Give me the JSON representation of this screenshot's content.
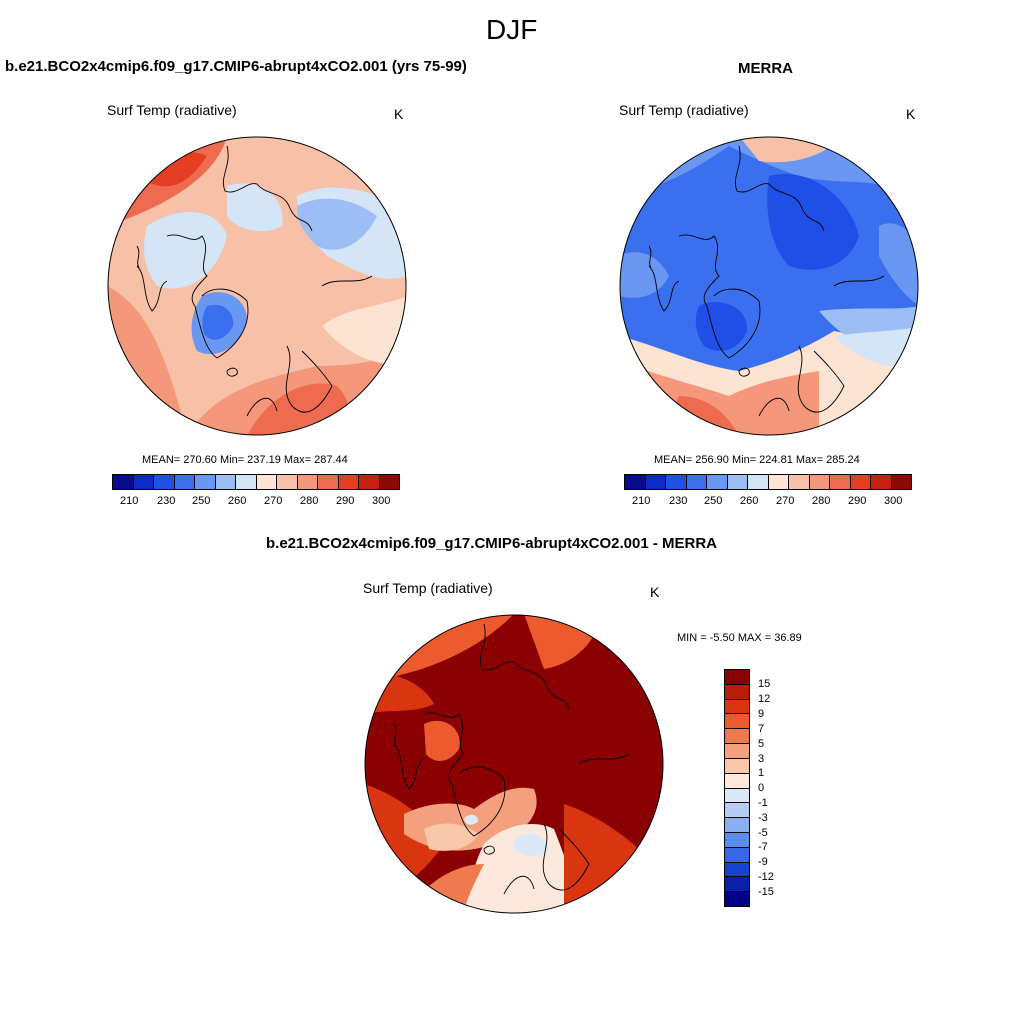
{
  "figure": {
    "title": "DJF",
    "panels": [
      {
        "title": "b.e21.BCO2x4cmip6.f09_g17.CMIP6-abrupt4xCO2.001 (yrs 75-99)",
        "variable": "Surf Temp (radiative)",
        "units": "K",
        "stats": "MEAN= 270.60  Min= 237.19  Max= 287.44",
        "colorbar_ticks": [
          "210",
          "230",
          "250",
          "260",
          "270",
          "280",
          "290",
          "300"
        ]
      },
      {
        "title": "MERRA",
        "variable": "Surf Temp (radiative)",
        "units": "K",
        "stats": "MEAN= 256.90  Min= 224.81  Max= 285.24",
        "colorbar_ticks": [
          "210",
          "230",
          "250",
          "260",
          "270",
          "280",
          "290",
          "300"
        ]
      },
      {
        "title": "b.e21.BCO2x4cmip6.f09_g17.CMIP6-abrupt4xCO2.001 - MERRA",
        "variable": "Surf Temp (radiative)",
        "units": "K",
        "stats": "MIN =  -5.50 MAX =  36.89",
        "colorbar_ticks": [
          "15",
          "12",
          "9",
          "7",
          "5",
          "3",
          "1",
          "0",
          "-1",
          "-3",
          "-5",
          "-7",
          "-9",
          "-12",
          "-15"
        ]
      }
    ]
  },
  "colors": {
    "abs_scale": [
      "#0a0a8c",
      "#0d2cc7",
      "#1f4fe6",
      "#3a70f0",
      "#6a97f2",
      "#9dbdf5",
      "#d4e5f7",
      "#fde3d2",
      "#f8c0a6",
      "#f4977a",
      "#ef6b4f",
      "#e53e23",
      "#c72010",
      "#8c0a05"
    ],
    "diff_scale": [
      "#8b0000",
      "#b81e04",
      "#d93510",
      "#ec5a2d",
      "#f07a50",
      "#f5a07d",
      "#f9c8ab",
      "#fde8dc",
      "#dbe8f7",
      "#b5cdf3",
      "#8bb0f0",
      "#5b8def",
      "#3766e8",
      "#1640d0",
      "#0a1fa8",
      "#00008b"
    ]
  }
}
